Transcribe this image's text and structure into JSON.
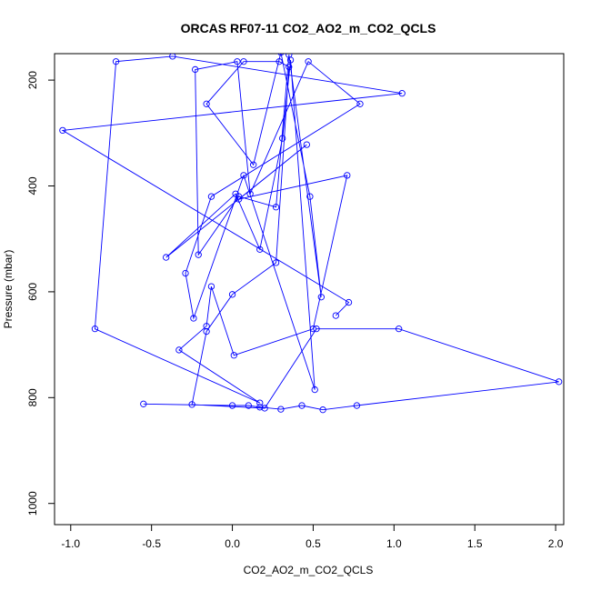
{
  "chart_data": {
    "type": "line",
    "title": "ORCAS RF07-11 CO2_AO2_m_CO2_QCLS",
    "xlabel": "CO2_AO2_m_CO2_QCLS",
    "ylabel": "Pressure (mbar)",
    "xlim": [
      -1.1,
      2.05
    ],
    "ylim": [
      1040,
      150
    ],
    "y_inverted": true,
    "grid": false,
    "legend": "none",
    "line_color": "#0000FF",
    "marker": "open-circle",
    "x_ticks": [
      -1.0,
      -0.5,
      0.0,
      0.5,
      1.0,
      1.5,
      2.0
    ],
    "x_tick_labels": [
      "-1.0",
      "-0.5",
      "0.0",
      "0.5",
      "1.0",
      "1.5",
      "2.0"
    ],
    "y_ticks": [
      200,
      400,
      600,
      800,
      1000
    ],
    "y_tick_labels": [
      "200",
      "400",
      "600",
      "800",
      "1000"
    ],
    "series": [
      {
        "x": [
          -0.55,
          0.0,
          0.1,
          0.17,
          0.3,
          0.43,
          0.56,
          0.77,
          2.02,
          1.03,
          0.52,
          0.2,
          -0.25,
          -0.16,
          0.0,
          0.27,
          0.35,
          0.29,
          0.07,
          -0.16,
          0.13,
          0.3,
          0.48,
          0.55,
          0.35,
          0.27,
          0.04,
          -0.21,
          -0.23,
          0.03,
          0.11,
          0.47,
          0.79,
          -0.13,
          -0.29,
          -0.24,
          0.07,
          0.51,
          0.36,
          0.31,
          0.17,
          0.02,
          -0.41,
          0.46,
          0.04,
          0.71,
          0.5,
          0.01,
          -0.13,
          -0.16,
          -0.33,
          0.17,
          -0.85,
          -0.72,
          -0.37,
          1.05,
          -1.05,
          0.72,
          0.64
        ],
        "y": [
          812,
          815,
          815,
          818,
          822,
          815,
          823,
          815,
          770,
          670,
          670,
          820,
          813,
          675,
          605,
          545,
          175,
          165,
          165,
          245,
          360,
          148,
          420,
          610,
          152,
          440,
          420,
          530,
          180,
          165,
          415,
          165,
          245,
          420,
          565,
          650,
          380,
          785,
          162,
          310,
          520,
          415,
          535,
          322,
          425,
          380,
          670,
          720,
          590,
          665,
          710,
          810,
          670,
          165,
          155,
          225,
          295,
          620,
          645
        ]
      }
    ]
  }
}
